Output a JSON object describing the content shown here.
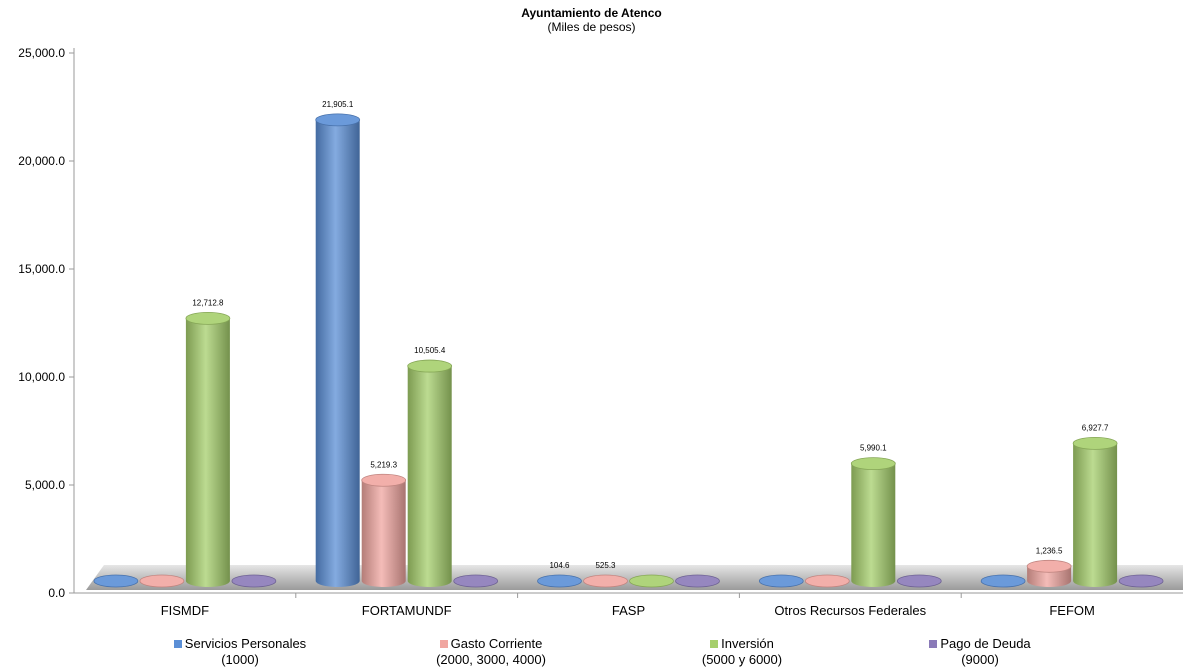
{
  "chart_data": {
    "type": "bar",
    "title": "Ayuntamiento de  Atenco",
    "subtitle": "(Miles de pesos)",
    "categories": [
      "FISMDF",
      "FORTAMUNDF",
      "FASP",
      "Otros Recursos Federales",
      "FEFOM"
    ],
    "series": [
      {
        "name": "Servicios Personales",
        "name_line2": "(1000)",
        "color": "#5b8fd6",
        "values": [
          0,
          21905.1,
          104.6,
          0,
          0
        ],
        "labels": [
          "",
          "21,905.1",
          "104.6",
          "",
          ""
        ]
      },
      {
        "name": "Gasto Corriente",
        "name_line2": "(2000, 3000, 4000)",
        "color": "#f0a6a0",
        "values": [
          0,
          5219.3,
          525.3,
          0,
          1236.5
        ],
        "labels": [
          "",
          "5,219.3",
          "525.3",
          "",
          "1,236.5"
        ]
      },
      {
        "name": "Inversión",
        "name_line2": "(5000 y 6000)",
        "color": "#a6cf6c",
        "values": [
          12712.8,
          10505.4,
          0,
          5990.1,
          6927.7
        ],
        "labels": [
          "12,712.8",
          "10,505.4",
          "",
          "5,990.1",
          "6,927.7"
        ]
      },
      {
        "name": "Pago de Deuda",
        "name_line2": "(9000)",
        "color": "#8a7ab8",
        "values": [
          0,
          0,
          0,
          0,
          0
        ],
        "labels": [
          "",
          "",
          "",
          "",
          ""
        ]
      }
    ],
    "ylim": [
      0,
      25000
    ],
    "yticks": [
      0,
      5000,
      10000,
      15000,
      20000,
      25000
    ],
    "ytick_labels": [
      "0.0",
      "5,000.0",
      "10,000.0",
      "15,000.0",
      "20,000.0",
      "25,000.0"
    ],
    "legend_position": "bottom",
    "grid": false,
    "style": "3d-cylinder"
  }
}
